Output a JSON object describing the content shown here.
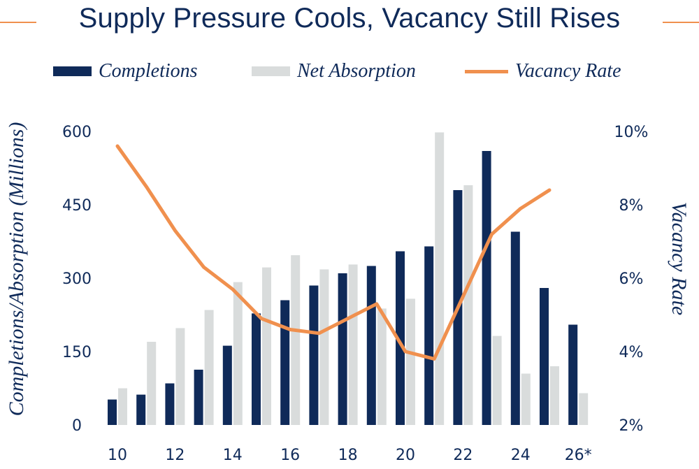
{
  "chart_data": {
    "type": "bar",
    "title": "Supply Pressure Cools, Vacancy Still Rises",
    "ylabel": "Completions/Absorption (Millions)",
    "y2label": "Vacancy Rate",
    "ylim": [
      0,
      600
    ],
    "y2lim": [
      2,
      10
    ],
    "yticks": [
      "0",
      "150",
      "300",
      "450",
      "600"
    ],
    "y2ticks": [
      "2%",
      "4%",
      "6%",
      "8%",
      "10%"
    ],
    "x": [
      "10",
      "11",
      "12",
      "13",
      "14",
      "15",
      "16",
      "17",
      "18",
      "19",
      "20",
      "21",
      "22",
      "23",
      "24",
      "25",
      "26*"
    ],
    "xtick_labels": [
      "10",
      "",
      "12",
      "",
      "14",
      "",
      "16",
      "",
      "18",
      "",
      "20",
      "",
      "22",
      "",
      "24",
      "",
      "26*"
    ],
    "series": [
      {
        "name": "Completions",
        "type": "bar",
        "color": "#0f2a59",
        "values": [
          52,
          62,
          85,
          113,
          162,
          228,
          255,
          285,
          310,
          325,
          355,
          365,
          480,
          560,
          395,
          280,
          205
        ]
      },
      {
        "name": "Net Absorption",
        "type": "bar",
        "color": "#d9dcdc",
        "values": [
          75,
          170,
          198,
          235,
          292,
          322,
          347,
          318,
          328,
          238,
          258,
          598,
          490,
          182,
          105,
          120,
          65
        ]
      },
      {
        "name": "Vacancy Rate",
        "type": "line",
        "axis": "right",
        "color": "#f0904e",
        "values": [
          9.6,
          8.5,
          7.3,
          6.3,
          5.7,
          4.9,
          4.6,
          4.5,
          4.9,
          5.3,
          4.0,
          3.8,
          5.5,
          7.2,
          7.9,
          8.4,
          null
        ]
      }
    ],
    "legend_position": "top",
    "grid": false
  }
}
